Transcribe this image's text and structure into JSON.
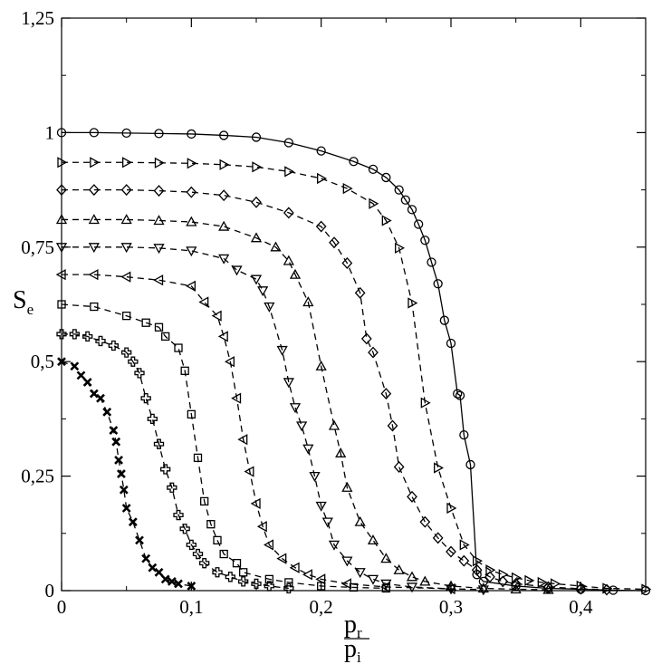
{
  "chart_data": {
    "type": "line",
    "title": "",
    "xlabel": {
      "numerator": "p",
      "numerator_sub": "r",
      "denominator": "p",
      "denominator_sub": "i"
    },
    "ylabel": {
      "main": "S",
      "sub": "e"
    },
    "xlim": [
      0,
      0.45
    ],
    "ylim": [
      0,
      1.25
    ],
    "xticks": [
      0,
      0.1,
      0.2,
      0.3,
      0.4
    ],
    "xtick_labels": [
      "0",
      "0,1",
      "0,2",
      "0,3",
      "0,4"
    ],
    "yticks": [
      0,
      0.25,
      0.5,
      0.75,
      1,
      1.25
    ],
    "ytick_labels": [
      "0",
      "0,25",
      "0,5",
      "0,75",
      "1",
      "1,25"
    ],
    "grid": false,
    "legend": "none",
    "series": [
      {
        "marker": "circle",
        "line": "solid",
        "points": [
          [
            0,
            1
          ],
          [
            0.025,
            1
          ],
          [
            0.05,
            0.999
          ],
          [
            0.075,
            0.998
          ],
          [
            0.1,
            0.997
          ],
          [
            0.125,
            0.994
          ],
          [
            0.15,
            0.99
          ],
          [
            0.175,
            0.978
          ],
          [
            0.2,
            0.96
          ],
          [
            0.225,
            0.937
          ],
          [
            0.24,
            0.92
          ],
          [
            0.25,
            0.902
          ],
          [
            0.26,
            0.875
          ],
          [
            0.265,
            0.853
          ],
          [
            0.27,
            0.832
          ],
          [
            0.275,
            0.8
          ],
          [
            0.28,
            0.765
          ],
          [
            0.285,
            0.717
          ],
          [
            0.29,
            0.67
          ],
          [
            0.295,
            0.59
          ],
          [
            0.3,
            0.54
          ],
          [
            0.305,
            0.43
          ],
          [
            0.307,
            0.426
          ],
          [
            0.31,
            0.34
          ],
          [
            0.315,
            0.275
          ],
          [
            0.32,
            0.035
          ],
          [
            0.325,
            0.02
          ],
          [
            0.35,
            0.01
          ],
          [
            0.375,
            0.005
          ],
          [
            0.4,
            0.003
          ],
          [
            0.425,
            0.001
          ],
          [
            0.45,
            0
          ]
        ]
      },
      {
        "marker": "triangle-right",
        "line": "dashed",
        "points": [
          [
            0,
            0.935
          ],
          [
            0.025,
            0.935
          ],
          [
            0.05,
            0.935
          ],
          [
            0.075,
            0.934
          ],
          [
            0.1,
            0.933
          ],
          [
            0.125,
            0.93
          ],
          [
            0.15,
            0.925
          ],
          [
            0.175,
            0.915
          ],
          [
            0.2,
            0.9
          ],
          [
            0.22,
            0.878
          ],
          [
            0.24,
            0.845
          ],
          [
            0.25,
            0.808
          ],
          [
            0.26,
            0.748
          ],
          [
            0.27,
            0.628
          ],
          [
            0.28,
            0.41
          ],
          [
            0.29,
            0.268
          ],
          [
            0.3,
            0.18
          ],
          [
            0.31,
            0.1
          ],
          [
            0.32,
            0.065
          ],
          [
            0.33,
            0.045
          ],
          [
            0.34,
            0.035
          ],
          [
            0.35,
            0.028
          ],
          [
            0.36,
            0.022
          ],
          [
            0.37,
            0.018
          ],
          [
            0.38,
            0.015
          ],
          [
            0.4,
            0.01
          ],
          [
            0.42,
            0.005
          ],
          [
            0.45,
            0.003
          ]
        ]
      },
      {
        "marker": "diamond",
        "line": "dashed",
        "points": [
          [
            0,
            0.875
          ],
          [
            0.025,
            0.875
          ],
          [
            0.05,
            0.875
          ],
          [
            0.075,
            0.873
          ],
          [
            0.1,
            0.87
          ],
          [
            0.125,
            0.863
          ],
          [
            0.15,
            0.848
          ],
          [
            0.175,
            0.825
          ],
          [
            0.2,
            0.795
          ],
          [
            0.21,
            0.76
          ],
          [
            0.22,
            0.715
          ],
          [
            0.23,
            0.65
          ],
          [
            0.235,
            0.55
          ],
          [
            0.24,
            0.52
          ],
          [
            0.25,
            0.43
          ],
          [
            0.255,
            0.36
          ],
          [
            0.26,
            0.27
          ],
          [
            0.27,
            0.205
          ],
          [
            0.28,
            0.15
          ],
          [
            0.29,
            0.115
          ],
          [
            0.3,
            0.085
          ],
          [
            0.31,
            0.065
          ],
          [
            0.32,
            0.045
          ],
          [
            0.33,
            0.03
          ],
          [
            0.34,
            0.02
          ],
          [
            0.35,
            0.015
          ],
          [
            0.375,
            0.008
          ],
          [
            0.4,
            0.004
          ],
          [
            0.42,
            0.002
          ]
        ]
      },
      {
        "marker": "triangle-up",
        "line": "dashed",
        "points": [
          [
            0,
            0.81
          ],
          [
            0.025,
            0.81
          ],
          [
            0.05,
            0.81
          ],
          [
            0.075,
            0.808
          ],
          [
            0.1,
            0.805
          ],
          [
            0.125,
            0.795
          ],
          [
            0.15,
            0.77
          ],
          [
            0.165,
            0.75
          ],
          [
            0.175,
            0.72
          ],
          [
            0.18,
            0.69
          ],
          [
            0.19,
            0.63
          ],
          [
            0.2,
            0.49
          ],
          [
            0.21,
            0.36
          ],
          [
            0.215,
            0.3
          ],
          [
            0.22,
            0.225
          ],
          [
            0.23,
            0.15
          ],
          [
            0.24,
            0.11
          ],
          [
            0.25,
            0.07
          ],
          [
            0.26,
            0.045
          ],
          [
            0.27,
            0.03
          ],
          [
            0.28,
            0.02
          ],
          [
            0.3,
            0.01
          ],
          [
            0.325,
            0.005
          ],
          [
            0.35,
            0.003
          ],
          [
            0.375,
            0.002
          ]
        ]
      },
      {
        "marker": "triangle-down",
        "line": "dashed",
        "points": [
          [
            0,
            0.75
          ],
          [
            0.025,
            0.75
          ],
          [
            0.05,
            0.75
          ],
          [
            0.075,
            0.748
          ],
          [
            0.1,
            0.742
          ],
          [
            0.125,
            0.725
          ],
          [
            0.135,
            0.7
          ],
          [
            0.15,
            0.68
          ],
          [
            0.155,
            0.655
          ],
          [
            0.16,
            0.62
          ],
          [
            0.17,
            0.525
          ],
          [
            0.175,
            0.455
          ],
          [
            0.18,
            0.4
          ],
          [
            0.185,
            0.36
          ],
          [
            0.19,
            0.31
          ],
          [
            0.195,
            0.25
          ],
          [
            0.2,
            0.185
          ],
          [
            0.205,
            0.15
          ],
          [
            0.21,
            0.1
          ],
          [
            0.22,
            0.065
          ],
          [
            0.23,
            0.04
          ],
          [
            0.24,
            0.025
          ],
          [
            0.25,
            0.015
          ],
          [
            0.27,
            0.008
          ],
          [
            0.3,
            0.004
          ],
          [
            0.325,
            0.002
          ]
        ]
      },
      {
        "marker": "triangle-left",
        "line": "dashed",
        "points": [
          [
            0,
            0.69
          ],
          [
            0.025,
            0.69
          ],
          [
            0.05,
            0.685
          ],
          [
            0.075,
            0.678
          ],
          [
            0.1,
            0.665
          ],
          [
            0.11,
            0.63
          ],
          [
            0.12,
            0.6
          ],
          [
            0.125,
            0.555
          ],
          [
            0.13,
            0.5
          ],
          [
            0.135,
            0.42
          ],
          [
            0.14,
            0.33
          ],
          [
            0.145,
            0.26
          ],
          [
            0.15,
            0.19
          ],
          [
            0.155,
            0.14
          ],
          [
            0.16,
            0.1
          ],
          [
            0.17,
            0.07
          ],
          [
            0.18,
            0.05
          ],
          [
            0.19,
            0.035
          ],
          [
            0.2,
            0.025
          ],
          [
            0.22,
            0.015
          ],
          [
            0.25,
            0.008
          ],
          [
            0.3,
            0.004
          ]
        ]
      },
      {
        "marker": "square",
        "line": "dashed",
        "points": [
          [
            0,
            0.625
          ],
          [
            0.025,
            0.62
          ],
          [
            0.05,
            0.6
          ],
          [
            0.065,
            0.585
          ],
          [
            0.075,
            0.575
          ],
          [
            0.08,
            0.555
          ],
          [
            0.09,
            0.53
          ],
          [
            0.095,
            0.48
          ],
          [
            0.1,
            0.385
          ],
          [
            0.105,
            0.29
          ],
          [
            0.11,
            0.195
          ],
          [
            0.115,
            0.145
          ],
          [
            0.12,
            0.11
          ],
          [
            0.125,
            0.08
          ],
          [
            0.135,
            0.06
          ],
          [
            0.14,
            0.04
          ],
          [
            0.16,
            0.025
          ],
          [
            0.175,
            0.018
          ],
          [
            0.2,
            0.01
          ],
          [
            0.225,
            0.007
          ],
          [
            0.25,
            0.005
          ]
        ]
      },
      {
        "marker": "plus",
        "line": "dashed",
        "points": [
          [
            0,
            0.56
          ],
          [
            0.01,
            0.56
          ],
          [
            0.02,
            0.555
          ],
          [
            0.03,
            0.545
          ],
          [
            0.04,
            0.535
          ],
          [
            0.05,
            0.52
          ],
          [
            0.055,
            0.5
          ],
          [
            0.06,
            0.475
          ],
          [
            0.065,
            0.42
          ],
          [
            0.07,
            0.375
          ],
          [
            0.075,
            0.32
          ],
          [
            0.08,
            0.265
          ],
          [
            0.085,
            0.225
          ],
          [
            0.09,
            0.165
          ],
          [
            0.095,
            0.135
          ],
          [
            0.1,
            0.1
          ],
          [
            0.105,
            0.08
          ],
          [
            0.11,
            0.06
          ],
          [
            0.12,
            0.04
          ],
          [
            0.13,
            0.03
          ],
          [
            0.14,
            0.02
          ],
          [
            0.15,
            0.015
          ],
          [
            0.16,
            0.01
          ],
          [
            0.175,
            0.005
          ]
        ]
      },
      {
        "marker": "x",
        "line": "dashed",
        "points": [
          [
            0,
            0.5
          ],
          [
            0.01,
            0.49
          ],
          [
            0.015,
            0.47
          ],
          [
            0.02,
            0.455
          ],
          [
            0.025,
            0.43
          ],
          [
            0.03,
            0.42
          ],
          [
            0.035,
            0.39
          ],
          [
            0.04,
            0.35
          ],
          [
            0.042,
            0.325
          ],
          [
            0.044,
            0.285
          ],
          [
            0.046,
            0.255
          ],
          [
            0.048,
            0.22
          ],
          [
            0.05,
            0.18
          ],
          [
            0.055,
            0.15
          ],
          [
            0.06,
            0.11
          ],
          [
            0.065,
            0.07
          ],
          [
            0.07,
            0.05
          ],
          [
            0.075,
            0.04
          ],
          [
            0.08,
            0.025
          ],
          [
            0.085,
            0.02
          ],
          [
            0.09,
            0.015
          ],
          [
            0.1,
            0.01
          ]
        ]
      }
    ]
  }
}
